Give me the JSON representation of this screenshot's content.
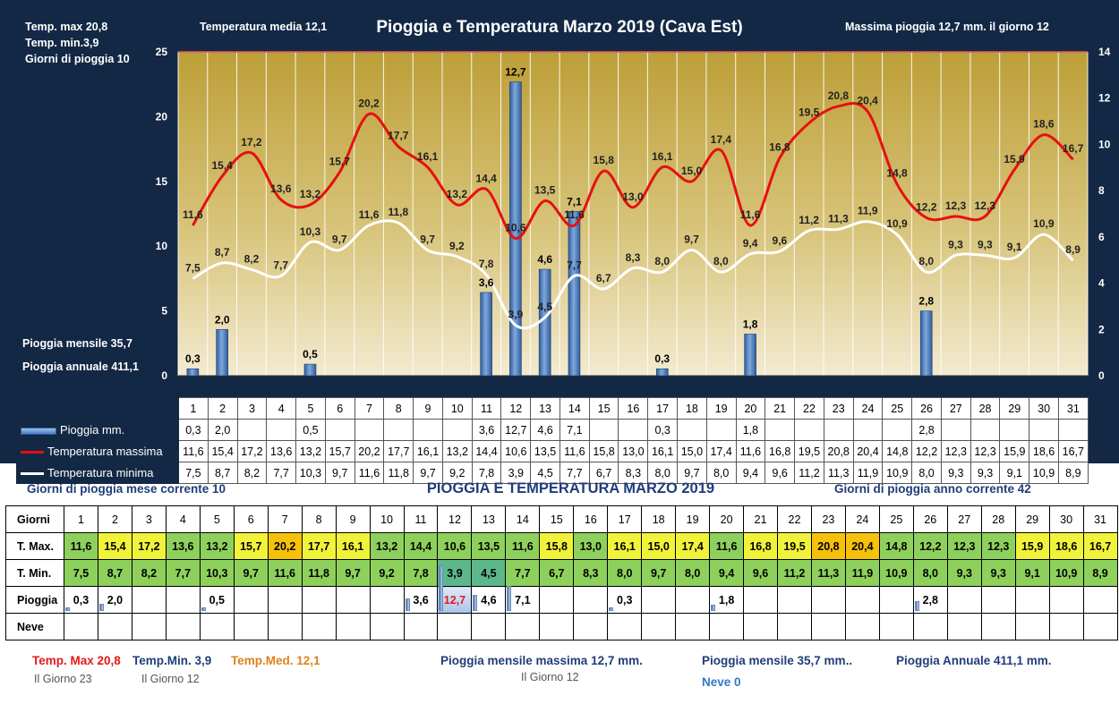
{
  "header": {
    "tmax": "Temp. max  20,8",
    "tmin": "Temp.  min.3,9",
    "rain_days": "Giorni  di pioggia   10",
    "tmed": "Temperatura media  12,1",
    "title": "Pioggia e Temperatura Marzo 2019 (Cava Est)",
    "max_rain": "Massima pioggia  12,7 mm.  il giorno   12",
    "rain_month": "Pioggia mensile     35,7",
    "rain_year": "Pioggia annuale    411,1"
  },
  "chart_data": {
    "type": "bar",
    "title": "Pioggia e Temperatura Marzo 2019 (Cava Est)",
    "categories": [
      "1",
      "2",
      "3",
      "4",
      "5",
      "6",
      "7",
      "8",
      "9",
      "10",
      "11",
      "12",
      "13",
      "14",
      "15",
      "16",
      "17",
      "18",
      "19",
      "20",
      "21",
      "22",
      "23",
      "24",
      "25",
      "26",
      "27",
      "28",
      "29",
      "30",
      "31"
    ],
    "series": [
      {
        "name": "Pioggia mm.",
        "type": "bar",
        "axis": "right",
        "values": [
          0.3,
          2.0,
          null,
          null,
          0.5,
          null,
          null,
          null,
          null,
          null,
          3.6,
          12.7,
          4.6,
          7.1,
          null,
          null,
          0.3,
          null,
          null,
          1.8,
          null,
          null,
          null,
          null,
          null,
          2.8,
          null,
          null,
          null,
          null,
          null
        ],
        "labels": [
          "0,3",
          "2,0",
          "",
          "",
          "0,5",
          "",
          "",
          "",
          "",
          "",
          "3,6",
          "12,7",
          "4,6",
          "7,1",
          "",
          "",
          "0,3",
          "",
          "",
          "1,8",
          "",
          "",
          "",
          "",
          "",
          "2,8",
          "",
          "",
          "",
          "",
          ""
        ]
      },
      {
        "name": "Temperatura massima",
        "type": "line",
        "axis": "left",
        "values": [
          11.6,
          15.4,
          17.2,
          13.6,
          13.2,
          15.7,
          20.2,
          17.7,
          16.1,
          13.2,
          14.4,
          10.6,
          13.5,
          11.6,
          15.8,
          13.0,
          16.1,
          15.0,
          17.4,
          11.6,
          16.8,
          19.5,
          20.8,
          20.4,
          14.8,
          12.2,
          12.3,
          12.3,
          15.9,
          18.6,
          16.7
        ],
        "labels": [
          "11,6",
          "15,4",
          "17,2",
          "13,6",
          "13,2",
          "15,7",
          "20,2",
          "17,7",
          "16,1",
          "13,2",
          "14,4",
          "10,6",
          "13,5",
          "11,6",
          "15,8",
          "13,0",
          "16,1",
          "15,0",
          "17,4",
          "11,6",
          "16,8",
          "19,5",
          "20,8",
          "20,4",
          "14,8",
          "12,2",
          "12,3",
          "12,3",
          "15,9",
          "18,6",
          "16,7"
        ]
      },
      {
        "name": "Temperatura minima",
        "type": "line",
        "axis": "left",
        "values": [
          7.5,
          8.7,
          8.2,
          7.7,
          10.3,
          9.7,
          11.6,
          11.8,
          9.7,
          9.2,
          7.8,
          3.9,
          4.5,
          7.7,
          6.7,
          8.3,
          8.0,
          9.7,
          8.0,
          9.4,
          9.6,
          11.2,
          11.3,
          11.9,
          10.9,
          8.0,
          9.3,
          9.3,
          9.1,
          10.9,
          8.9
        ],
        "labels": [
          "7,5",
          "8,7",
          "8,2",
          "7,7",
          "10,3",
          "9,7",
          "11,6",
          "11,8",
          "9,7",
          "9,2",
          "7,8",
          "3,9",
          "4,5",
          "7,7",
          "6,7",
          "8,3",
          "8,0",
          "9,7",
          "8,0",
          "9,4",
          "9,6",
          "11,2",
          "11,3",
          "11,9",
          "10,9",
          "8,0",
          "9,3",
          "9,3",
          "9,1",
          "10,9",
          "8,9"
        ]
      }
    ],
    "ylim": [
      0,
      25
    ],
    "yticks": [
      "0",
      "5",
      "10",
      "15",
      "20",
      "25"
    ],
    "y2lim": [
      0,
      14
    ],
    "y2ticks": [
      "0",
      "2",
      "4",
      "6",
      "8",
      "10",
      "12",
      "14"
    ],
    "grid": true,
    "colors": {
      "rain": "#4a7fc4",
      "tmax": "#e61010",
      "tmin": "#ffffff",
      "bg_top": "#bd9f38",
      "bg_bottom": "#f3ead0",
      "panel": "#132844"
    }
  },
  "legend": {
    "rain": "Pioggia mm.",
    "tmax": "Temperatura massima",
    "tmin": "Temperatura minima"
  },
  "summary": {
    "rain_days_month": "Giorni di pioggia mese corrente   10",
    "title": "PIOGGIA E TEMPERATURA MARZO 2019",
    "rain_days_year": "Giorni di pioggia anno corrente  42",
    "row_labels": {
      "days": "Giorni",
      "tmax": "T. Max.",
      "tmin": "T. Min.",
      "rain": "Pioggia",
      "snow": "Neve"
    },
    "tmax_colors": [
      "#8ed05c",
      "#f1f33a",
      "#f1f33a",
      "#8ed05c",
      "#8ed05c",
      "#f1f33a",
      "#f6c10b",
      "#f1f33a",
      "#f1f33a",
      "#8ed05c",
      "#8ed05c",
      "#8ed05c",
      "#8ed05c",
      "#8ed05c",
      "#f1f33a",
      "#8ed05c",
      "#f1f33a",
      "#f1f33a",
      "#f1f33a",
      "#8ed05c",
      "#f1f33a",
      "#f1f33a",
      "#f6c10b",
      "#f6c10b",
      "#8ed05c",
      "#8ed05c",
      "#8ed05c",
      "#8ed05c",
      "#f1f33a",
      "#f1f33a",
      "#f1f33a"
    ],
    "tmin_colors": [
      "#8ed05c",
      "#8ed05c",
      "#8ed05c",
      "#8ed05c",
      "#8ed05c",
      "#8ed05c",
      "#8ed05c",
      "#8ed05c",
      "#8ed05c",
      "#8ed05c",
      "#8ed05c",
      "#5cb88a",
      "#5cb88a",
      "#8ed05c",
      "#8ed05c",
      "#8ed05c",
      "#8ed05c",
      "#8ed05c",
      "#8ed05c",
      "#8ed05c",
      "#8ed05c",
      "#8ed05c",
      "#8ed05c",
      "#8ed05c",
      "#8ed05c",
      "#8ed05c",
      "#8ed05c",
      "#8ed05c",
      "#8ed05c",
      "#8ed05c",
      "#8ed05c"
    ],
    "footer": {
      "tmax": "Temp. Max 20,8",
      "tmax_day": "Il Giorno  23",
      "tmin": "Temp.Min.  3,9",
      "tmin_day": "Il Giorno 12",
      "tmed": "Temp.Med. 12,1",
      "rain_max": "Pioggia mensile massima  12,7   mm.",
      "rain_max_day": "Il Giorno 12",
      "rain_month": "Pioggia mensile  35,7    mm..",
      "rain_year": "Pioggia Annuale  411,1    mm.",
      "snow": "Neve 0"
    }
  }
}
